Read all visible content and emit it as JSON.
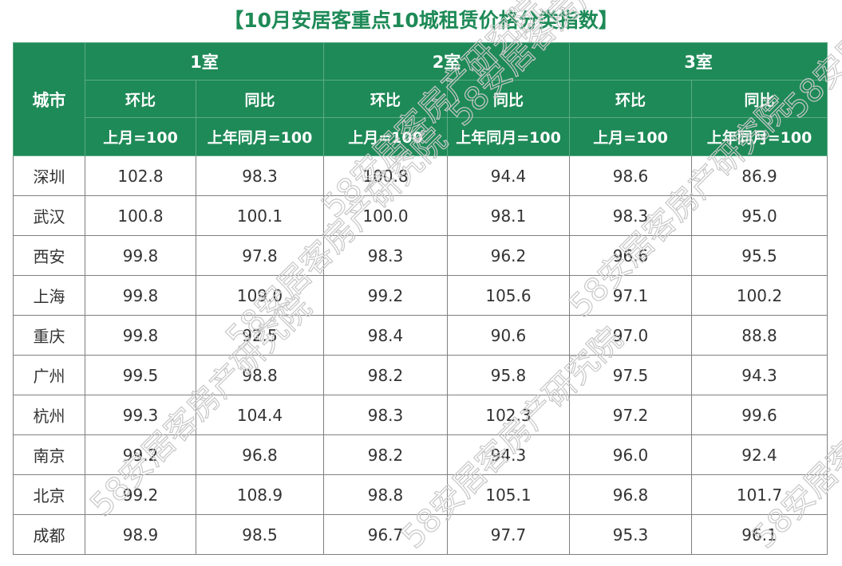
{
  "title": "【10月安居客重点10城租赁价格分类指数】",
  "table": {
    "city_header": "城市",
    "groups": [
      {
        "label": "1室",
        "mom": "环比",
        "yoy": "同比",
        "mom_base": "上月=100",
        "yoy_base": "上年同月=100"
      },
      {
        "label": "2室",
        "mom": "环比",
        "yoy": "同比",
        "mom_base": "上月=100",
        "yoy_base": "上年同月=100"
      },
      {
        "label": "3室",
        "mom": "环比",
        "yoy": "同比",
        "mom_base": "上月=100",
        "yoy_base": "上年同月=100"
      }
    ],
    "rows": [
      {
        "city": "深圳",
        "values": [
          "102.8",
          "98.3",
          "100.8",
          "94.4",
          "98.6",
          "86.9"
        ]
      },
      {
        "city": "武汉",
        "values": [
          "100.8",
          "100.1",
          "100.0",
          "98.1",
          "98.3",
          "95.0"
        ]
      },
      {
        "city": "西安",
        "values": [
          "99.8",
          "97.8",
          "98.3",
          "96.2",
          "96.6",
          "95.5"
        ]
      },
      {
        "city": "上海",
        "values": [
          "99.8",
          "109.0",
          "99.2",
          "105.6",
          "97.1",
          "100.2"
        ]
      },
      {
        "city": "重庆",
        "values": [
          "99.8",
          "92.5",
          "98.4",
          "90.6",
          "97.0",
          "88.8"
        ]
      },
      {
        "city": "广州",
        "values": [
          "99.5",
          "98.8",
          "98.2",
          "95.8",
          "97.5",
          "94.3"
        ]
      },
      {
        "city": "杭州",
        "values": [
          "99.3",
          "104.4",
          "98.3",
          "102.3",
          "97.2",
          "99.6"
        ]
      },
      {
        "city": "南京",
        "values": [
          "99.2",
          "96.8",
          "98.2",
          "94.3",
          "96.0",
          "92.4"
        ]
      },
      {
        "city": "北京",
        "values": [
          "99.2",
          "108.9",
          "98.8",
          "105.1",
          "96.8",
          "101.7"
        ]
      },
      {
        "city": "成都",
        "values": [
          "98.9",
          "98.5",
          "96.7",
          "97.7",
          "95.3",
          "96.1"
        ]
      }
    ]
  },
  "watermark": {
    "text": "58安居客房产研究院",
    "color": "#c8c8c8"
  },
  "colors": {
    "header_bg": "#1e8a57",
    "header_text": "#ffffff",
    "title": "#1e8a57",
    "grid": "#7f7f7f"
  }
}
